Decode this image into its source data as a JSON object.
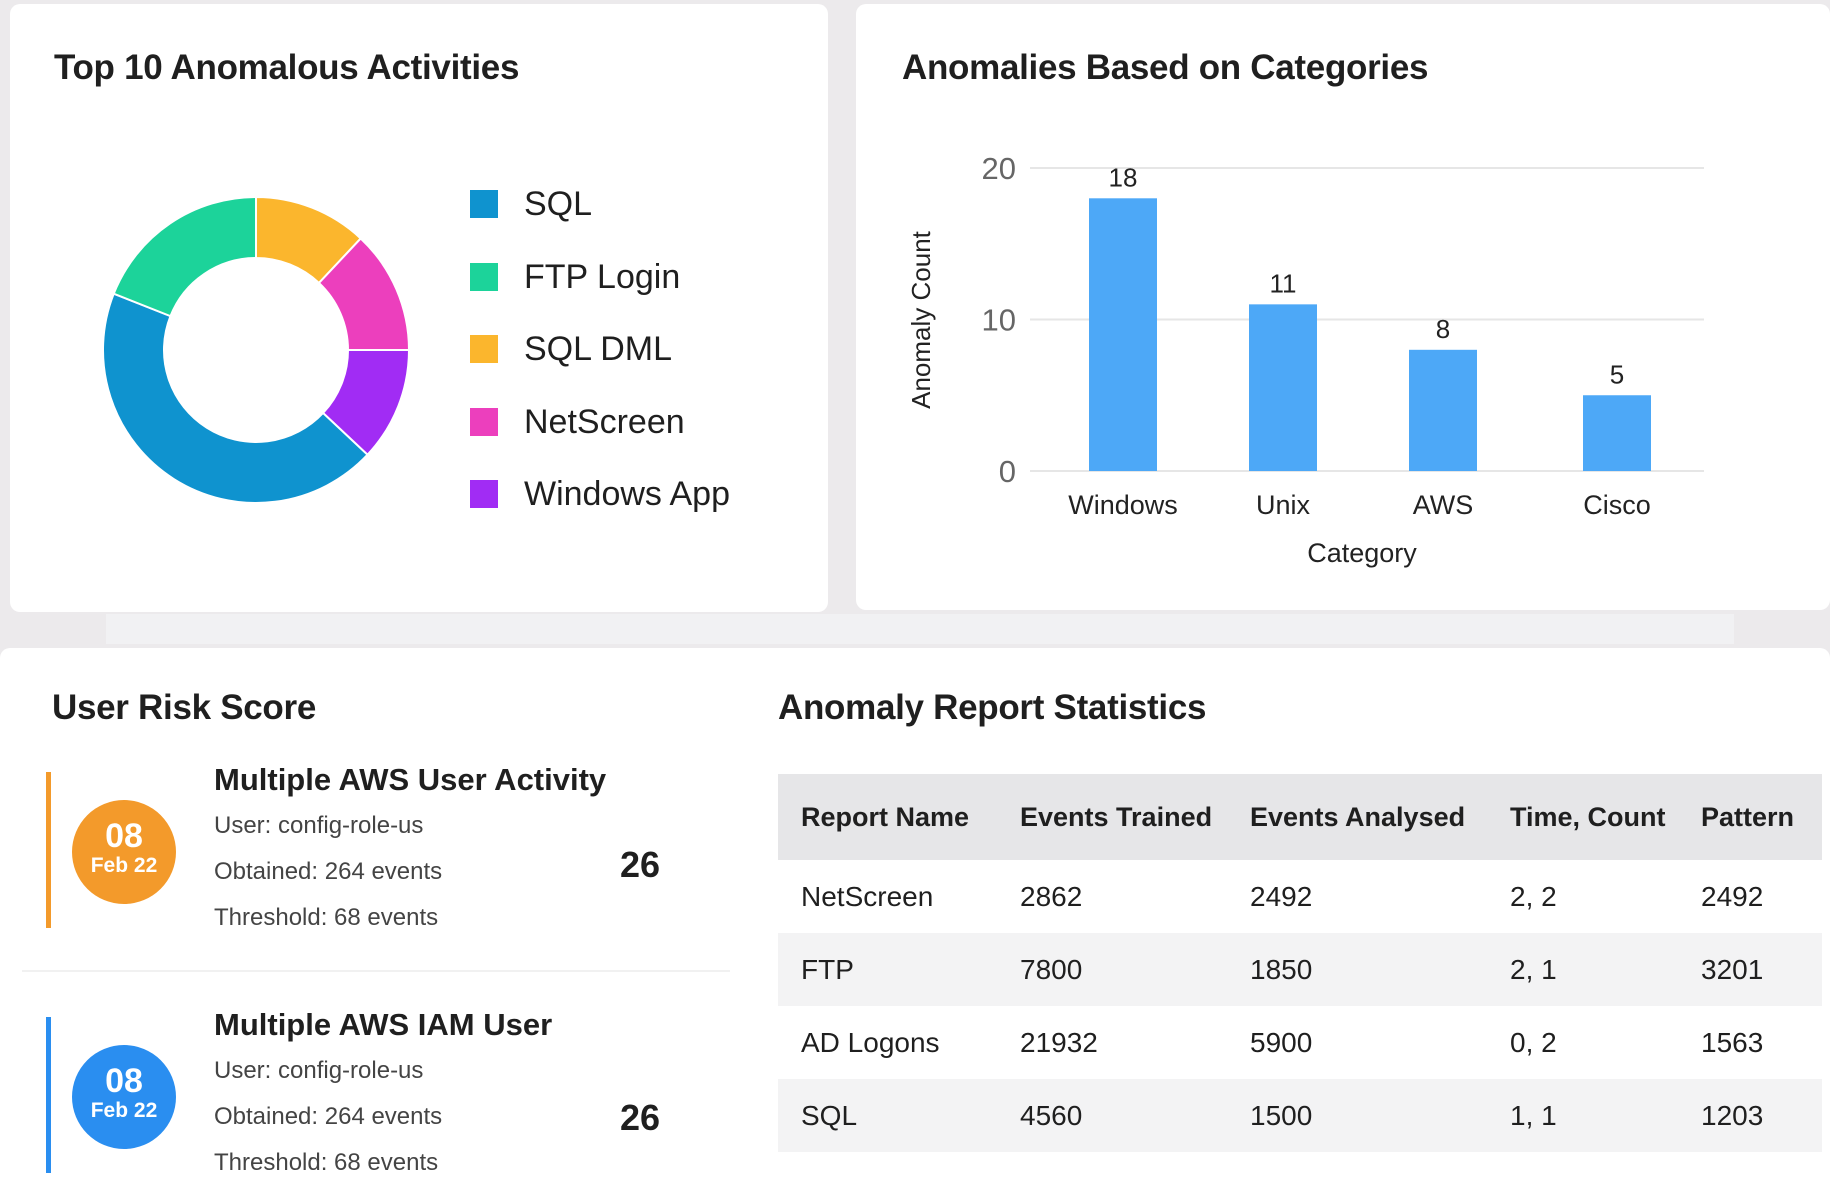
{
  "donut_card": {
    "title": "Top 10 Anomalous Activities"
  },
  "bar_card": {
    "title": "Anomalies Based on Categories"
  },
  "chart_data": [
    {
      "type": "pie",
      "title": "Top 10 Anomalous Activities",
      "labels": [
        "SQL",
        "FTP Login",
        "SQL DML",
        "NetScreen",
        "Windows App"
      ],
      "values": [
        44,
        19,
        12,
        13,
        12
      ],
      "colors": [
        "#0f93cf",
        "#1cd39a",
        "#fbb62d",
        "#ec3fbd",
        "#a12cf4"
      ],
      "legend": "right",
      "donut": true
    },
    {
      "type": "bar",
      "title": "Anomalies Based on Categories",
      "categories": [
        "Windows",
        "Unix",
        "AWS",
        "Cisco"
      ],
      "values": [
        18,
        11,
        8,
        5
      ],
      "xlabel": "Category",
      "ylabel": "Anomaly Count",
      "ylim": [
        0,
        20
      ],
      "yticks": [
        0,
        10,
        20
      ],
      "grid": true,
      "color": "#4da8f7",
      "data_labels": [
        "18",
        "11",
        "8",
        "5"
      ]
    }
  ],
  "risk": {
    "title": "User Risk Score",
    "items": [
      {
        "day": "08",
        "month": "Feb 22",
        "title": "Multiple AWS User Activity",
        "user": "User: config-role-us",
        "obtained": "Obtained: 264 events",
        "threshold": "Threshold: 68 events",
        "score": "26",
        "color": "#f39a2b"
      },
      {
        "day": "08",
        "month": "Feb 22",
        "title": "Multiple AWS IAM User",
        "user": "User: config-role-us",
        "obtained": "Obtained: 264 events",
        "threshold": "Threshold: 68 events",
        "score": "26",
        "color": "#2a8ef0"
      }
    ]
  },
  "stats": {
    "title": "Anomaly Report Statistics",
    "columns": [
      "Report Name",
      "Events Trained",
      "Events Analysed",
      "Time, Count",
      "Pattern"
    ],
    "rows": [
      [
        "NetScreen",
        "2862",
        "2492",
        "2, 2",
        "2492"
      ],
      [
        "FTP",
        "7800",
        "1850",
        "2, 1",
        "3201"
      ],
      [
        "AD Logons",
        "21932",
        "5900",
        "0, 2",
        "1563"
      ],
      [
        "SQL",
        "4560",
        "1500",
        "1, 1",
        "1203"
      ]
    ]
  }
}
